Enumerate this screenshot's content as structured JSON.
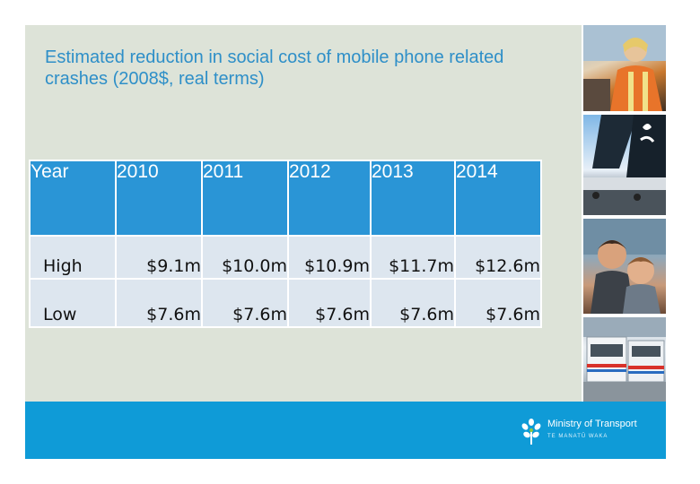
{
  "title": "Estimated reduction in social cost of mobile phone related crashes (2008$, real terms)",
  "table": {
    "header": [
      "Year",
      "2010",
      "2011",
      "2012",
      "2013",
      "2014"
    ],
    "rows": [
      [
        "High",
        "$9.1m",
        "$10.0m",
        "$10.9m",
        "$11.7m",
        "$12.6m"
      ],
      [
        "Low",
        "$7.6m",
        "$7.6m",
        "$7.6m",
        "$7.6m",
        "$7.6m"
      ]
    ]
  },
  "sidebar_photos": [
    "woman-on-phone-photo",
    "air-new-zealand-aircraft-photo",
    "two-boys-photo",
    "buses-photo"
  ],
  "footer": {
    "logo_text": "Ministry of Transport",
    "logo_subtext": "TE MANATŪ WAKA"
  },
  "colors": {
    "title": "#2e8fc8",
    "table_header": "#2a95d6",
    "table_body": "#dde6ef",
    "content_background": "#dde3d8",
    "footer": "#0f9bd7"
  }
}
